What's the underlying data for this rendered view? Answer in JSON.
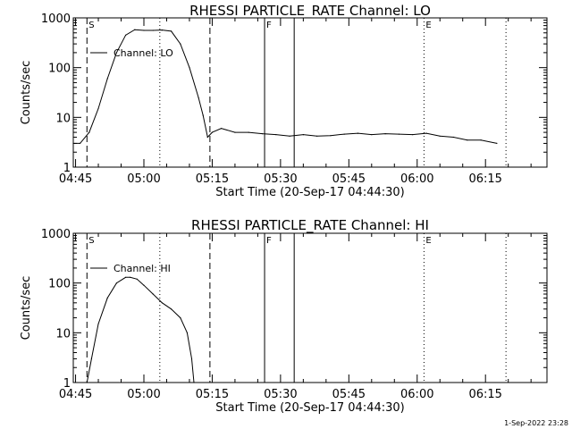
{
  "footer_timestamp": "1-Sep-2022 23:28",
  "chart_data": [
    {
      "type": "line",
      "title": "RHESSI PARTICLE_RATE Channel: LO",
      "xlabel": "Start Time (20-Sep-17 04:44:30)",
      "ylabel": "Counts/sec",
      "yscale": "log",
      "ylim": [
        1,
        1000
      ],
      "xlim": [
        "04:44:30",
        "06:28:30"
      ],
      "x_ticks": [
        "04:45",
        "05:00",
        "05:15",
        "05:30",
        "05:45",
        "06:00",
        "06:15"
      ],
      "y_ticks": [
        "1",
        "10",
        "100",
        "1000"
      ],
      "legend": "top-left",
      "series": [
        {
          "name": "Channel: LO",
          "x": [
            "04:44:30",
            "04:46:00",
            "04:48:00",
            "04:50:00",
            "04:52:00",
            "04:54:00",
            "04:56:00",
            "04:58:00",
            "05:00:00",
            "05:02:00",
            "05:04:00",
            "05:06:00",
            "05:08:00",
            "05:10:00",
            "05:12:00",
            "05:13:00",
            "05:14:00",
            "05:15:00",
            "05:17:00",
            "05:20:00",
            "05:23:00",
            "05:26:00",
            "05:29:00",
            "05:32:00",
            "05:35:00",
            "05:38:00",
            "05:41:00",
            "05:44:00",
            "05:47:00",
            "05:50:00",
            "05:53:00",
            "05:56:00",
            "05:59:00",
            "06:02:00",
            "06:05:00",
            "06:08:00",
            "06:11:00",
            "06:14:00",
            "06:17:30"
          ],
          "y": [
            3,
            3,
            5,
            15,
            60,
            200,
            450,
            580,
            560,
            560,
            570,
            540,
            300,
            100,
            25,
            11,
            4,
            5,
            6,
            5,
            5,
            4.7,
            4.5,
            4.2,
            4.5,
            4.2,
            4.3,
            4.6,
            4.8,
            4.5,
            4.7,
            4.6,
            4.5,
            4.8,
            4.2,
            4.0,
            3.5,
            3.5,
            3
          ]
        }
      ],
      "markers": [
        {
          "label": "S",
          "time": "04:47:30",
          "style": "dashed"
        },
        {
          "label": "",
          "time": "05:14:30",
          "style": "dashed"
        },
        {
          "label": "F",
          "time": "05:26:30",
          "style": "solid"
        },
        {
          "label": "",
          "time": "05:33:00",
          "style": "solid"
        },
        {
          "label": "",
          "time": "05:03:30",
          "style": "dotted"
        },
        {
          "label": "E",
          "time": "06:01:30",
          "style": "dotted"
        },
        {
          "label": "",
          "time": "06:19:30",
          "style": "dotted"
        }
      ]
    },
    {
      "type": "line",
      "title": "RHESSI PARTICLE_RATE Channel: HI",
      "xlabel": "Start Time (20-Sep-17 04:44:30)",
      "ylabel": "Counts/sec",
      "yscale": "log",
      "ylim": [
        1,
        1000
      ],
      "xlim": [
        "04:44:30",
        "06:28:30"
      ],
      "x_ticks": [
        "04:45",
        "05:00",
        "05:15",
        "05:30",
        "05:45",
        "06:00",
        "06:15"
      ],
      "y_ticks": [
        "1",
        "10",
        "100",
        "1000"
      ],
      "legend": "top-left",
      "series": [
        {
          "name": "Channel: HI",
          "x": [
            "04:47:30",
            "04:48:30",
            "04:50:00",
            "04:52:00",
            "04:54:00",
            "04:56:00",
            "04:57:00",
            "04:58:30",
            "05:00:00",
            "05:02:00",
            "05:04:00",
            "05:06:00",
            "05:08:00",
            "05:09:30",
            "05:10:30",
            "05:11:00"
          ],
          "y": [
            1,
            3,
            15,
            50,
            100,
            130,
            130,
            120,
            90,
            60,
            40,
            30,
            20,
            10,
            3,
            1
          ]
        }
      ],
      "markers": [
        {
          "label": "S",
          "time": "04:47:30",
          "style": "dashed"
        },
        {
          "label": "",
          "time": "05:14:30",
          "style": "dashed"
        },
        {
          "label": "F",
          "time": "05:26:30",
          "style": "solid"
        },
        {
          "label": "",
          "time": "05:33:00",
          "style": "solid"
        },
        {
          "label": "",
          "time": "05:03:30",
          "style": "dotted"
        },
        {
          "label": "E",
          "time": "06:01:30",
          "style": "dotted"
        },
        {
          "label": "",
          "time": "06:19:30",
          "style": "dotted"
        }
      ]
    }
  ]
}
